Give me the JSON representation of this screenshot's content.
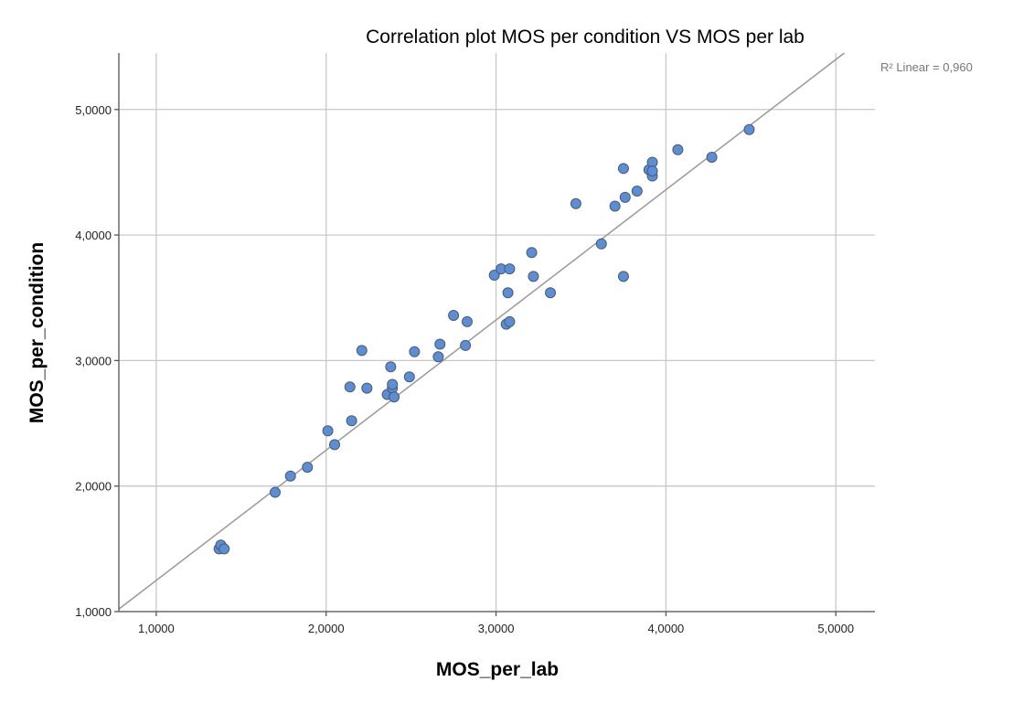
{
  "chart_data": {
    "type": "scatter",
    "title": "Correlation plot MOS per condition VS MOS per lab",
    "xlabel": "MOS_per_lab",
    "ylabel": "MOS_per_condition",
    "xlim": [
      0.78,
      5.23
    ],
    "ylim": [
      1.0,
      5.45
    ],
    "x_ticks": [
      1.0,
      2.0,
      3.0,
      4.0,
      5.0
    ],
    "y_ticks": [
      1.0,
      2.0,
      3.0,
      4.0,
      5.0
    ],
    "x_tick_labels": [
      "1,0000",
      "2,0000",
      "3,0000",
      "4,0000",
      "5,0000"
    ],
    "y_tick_labels": [
      "1,0000",
      "2,0000",
      "3,0000",
      "4,0000",
      "5,0000"
    ],
    "grid": true,
    "annotation": "R² Linear = 0,960",
    "fit_line": {
      "type": "linear",
      "points": [
        [
          0.78,
          1.02
        ],
        [
          5.05,
          5.45
        ]
      ]
    },
    "marker_color": "#5b8ed4",
    "points": [
      [
        1.37,
        1.5
      ],
      [
        1.38,
        1.53
      ],
      [
        1.4,
        1.5
      ],
      [
        1.7,
        1.95
      ],
      [
        1.79,
        2.08
      ],
      [
        1.89,
        2.15
      ],
      [
        2.01,
        2.44
      ],
      [
        2.05,
        2.33
      ],
      [
        2.14,
        2.79
      ],
      [
        2.15,
        2.52
      ],
      [
        2.21,
        3.08
      ],
      [
        2.24,
        2.78
      ],
      [
        2.36,
        2.73
      ],
      [
        2.38,
        2.95
      ],
      [
        2.39,
        2.78
      ],
      [
        2.39,
        2.81
      ],
      [
        2.4,
        2.71
      ],
      [
        2.49,
        2.87
      ],
      [
        2.52,
        3.07
      ],
      [
        2.66,
        3.03
      ],
      [
        2.67,
        3.13
      ],
      [
        2.75,
        3.36
      ],
      [
        2.82,
        3.12
      ],
      [
        2.83,
        3.31
      ],
      [
        2.99,
        3.68
      ],
      [
        3.03,
        3.73
      ],
      [
        3.06,
        3.29
      ],
      [
        3.07,
        3.54
      ],
      [
        3.08,
        3.31
      ],
      [
        3.08,
        3.73
      ],
      [
        3.21,
        3.86
      ],
      [
        3.22,
        3.67
      ],
      [
        3.32,
        3.54
      ],
      [
        3.47,
        4.25
      ],
      [
        3.62,
        3.93
      ],
      [
        3.7,
        4.23
      ],
      [
        3.75,
        4.53
      ],
      [
        3.75,
        3.67
      ],
      [
        3.76,
        4.3
      ],
      [
        3.83,
        4.35
      ],
      [
        3.9,
        4.52
      ],
      [
        3.92,
        4.47
      ],
      [
        3.92,
        4.58
      ],
      [
        3.92,
        4.51
      ],
      [
        4.07,
        4.68
      ],
      [
        4.27,
        4.62
      ],
      [
        4.49,
        4.84
      ]
    ]
  }
}
